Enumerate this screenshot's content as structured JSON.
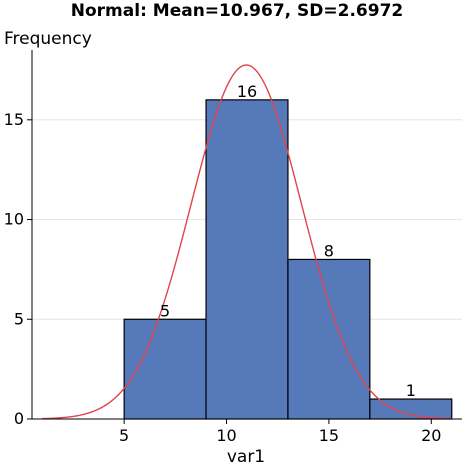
{
  "chart_data": {
    "type": "bar",
    "title": "Normal: Mean=10.967, SD=2.6972",
    "xlabel": "var1",
    "ylabel": "Frequency",
    "xlim": [
      0.5,
      21.5
    ],
    "ylim": [
      0,
      18.5
    ],
    "x_ticks": [
      5,
      10,
      15,
      20
    ],
    "y_ticks": [
      0,
      5,
      10,
      15
    ],
    "bins": [
      {
        "start": 5,
        "end": 9,
        "count": 5
      },
      {
        "start": 9,
        "end": 13,
        "count": 16
      },
      {
        "start": 13,
        "end": 17,
        "count": 8
      },
      {
        "start": 17,
        "end": 21,
        "count": 1
      }
    ],
    "data_labels": [
      "5",
      "16",
      "8",
      "1"
    ],
    "normal_curve": {
      "mean": 10.967,
      "sd": 2.6972,
      "n": 30,
      "bin_width": 4
    },
    "grid": true,
    "colors": {
      "bar": "#5579b9",
      "curve": "#e0444c",
      "grid": "#e6e6e6"
    }
  }
}
